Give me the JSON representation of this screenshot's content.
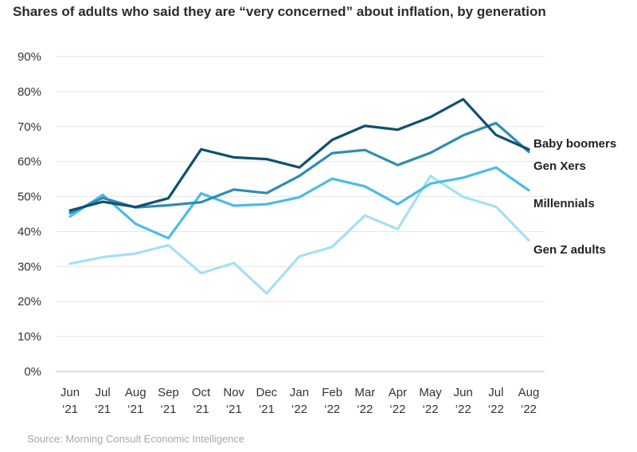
{
  "title": "Shares of adults who said they are “very concerned” about inflation, by generation",
  "source": "Source: Morning Consult Economic Intelligence",
  "chart_data": {
    "type": "line",
    "title": "Shares of adults who said they are “very concerned” about inflation, by generation",
    "xlabel": "",
    "ylabel": "",
    "ylim": [
      0,
      90
    ],
    "yticks": [
      "0%",
      "10%",
      "20%",
      "30%",
      "40%",
      "50%",
      "60%",
      "70%",
      "80%",
      "90%"
    ],
    "grid": true,
    "categories": [
      [
        "Jun",
        "‘21"
      ],
      [
        "Jul",
        "‘21"
      ],
      [
        "Aug",
        "‘21"
      ],
      [
        "Sep",
        "‘21"
      ],
      [
        "Oct",
        "‘21"
      ],
      [
        "Nov",
        "‘21"
      ],
      [
        "Dec",
        "‘21"
      ],
      [
        "Jan",
        "‘22"
      ],
      [
        "Feb",
        "‘22"
      ],
      [
        "Mar",
        "‘22"
      ],
      [
        "Apr",
        "‘22"
      ],
      [
        "May",
        "‘22"
      ],
      [
        "Jun",
        "‘22"
      ],
      [
        "Jul",
        "‘22"
      ],
      [
        "Aug",
        "‘22"
      ]
    ],
    "series": [
      {
        "name": "Baby boomers",
        "color": "#10506e",
        "values": [
          46,
          48.5,
          47,
          49.5,
          63.5,
          61.2,
          60.7,
          58.3,
          66.2,
          70.2,
          69.1,
          72.7,
          77.8,
          67.6,
          63.5
        ]
      },
      {
        "name": "Gen Xers",
        "color": "#2f8cb3",
        "values": [
          45.3,
          49.6,
          46.9,
          47.5,
          48.4,
          52,
          51,
          55.9,
          62.4,
          63.3,
          59,
          62.5,
          67.5,
          71,
          62.8
        ]
      },
      {
        "name": "Millennials",
        "color": "#4cbbe6",
        "values": [
          44.3,
          50.5,
          42.2,
          38.1,
          50.9,
          47.4,
          47.8,
          49.8,
          55.1,
          52.9,
          47.8,
          53.7,
          55.4,
          58.3,
          51.8
        ]
      },
      {
        "name": "Gen Z adults",
        "color": "#a3e1f6",
        "values": [
          30.8,
          32.7,
          33.7,
          36.1,
          28.1,
          31,
          22.3,
          32.9,
          35.6,
          44.6,
          40.7,
          55.9,
          49.9,
          47.1,
          37.5
        ]
      }
    ]
  }
}
